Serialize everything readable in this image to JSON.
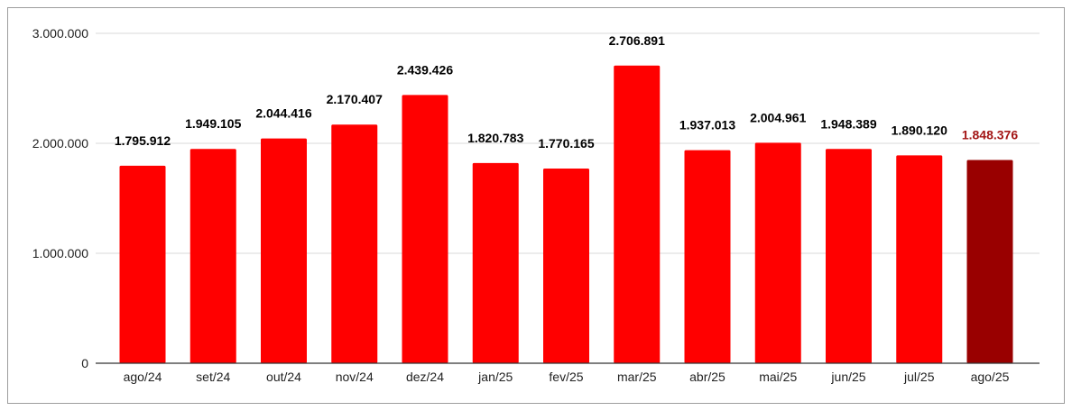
{
  "chart_data": {
    "type": "bar",
    "title": "",
    "xlabel": "",
    "ylabel": "",
    "categories": [
      "ago/24",
      "set/24",
      "out/24",
      "nov/24",
      "dez/24",
      "jan/25",
      "fev/25",
      "mar/25",
      "abr/25",
      "mai/25",
      "jun/25",
      "jul/25",
      "ago/25"
    ],
    "values": [
      1795912,
      1949105,
      2044416,
      2170407,
      2439426,
      1820783,
      1770165,
      2706891,
      1937013,
      2004961,
      1948389,
      1890120,
      1848376
    ],
    "value_labels": [
      "1.795.912",
      "1.949.105",
      "2.044.416",
      "2.170.407",
      "2.439.426",
      "1.820.783",
      "1.770.165",
      "2.706.891",
      "1.937.013",
      "2.004.961",
      "1.948.389",
      "1.890.120",
      "1.848.376"
    ],
    "ylim": [
      0,
      3000000
    ],
    "yticks": [
      0,
      1000000,
      2000000,
      3000000
    ],
    "ytick_labels": [
      "0",
      "1.000.000",
      "2.000.000",
      "3.000.000"
    ],
    "grid": true,
    "legend": "none",
    "colors": {
      "bar": "#ff0000",
      "highlight_bar": "#990000",
      "label": "#000000",
      "highlight_label": "#a31515",
      "grid": "#d9d9d9",
      "axis": "#333333"
    },
    "highlight_index": 12
  }
}
